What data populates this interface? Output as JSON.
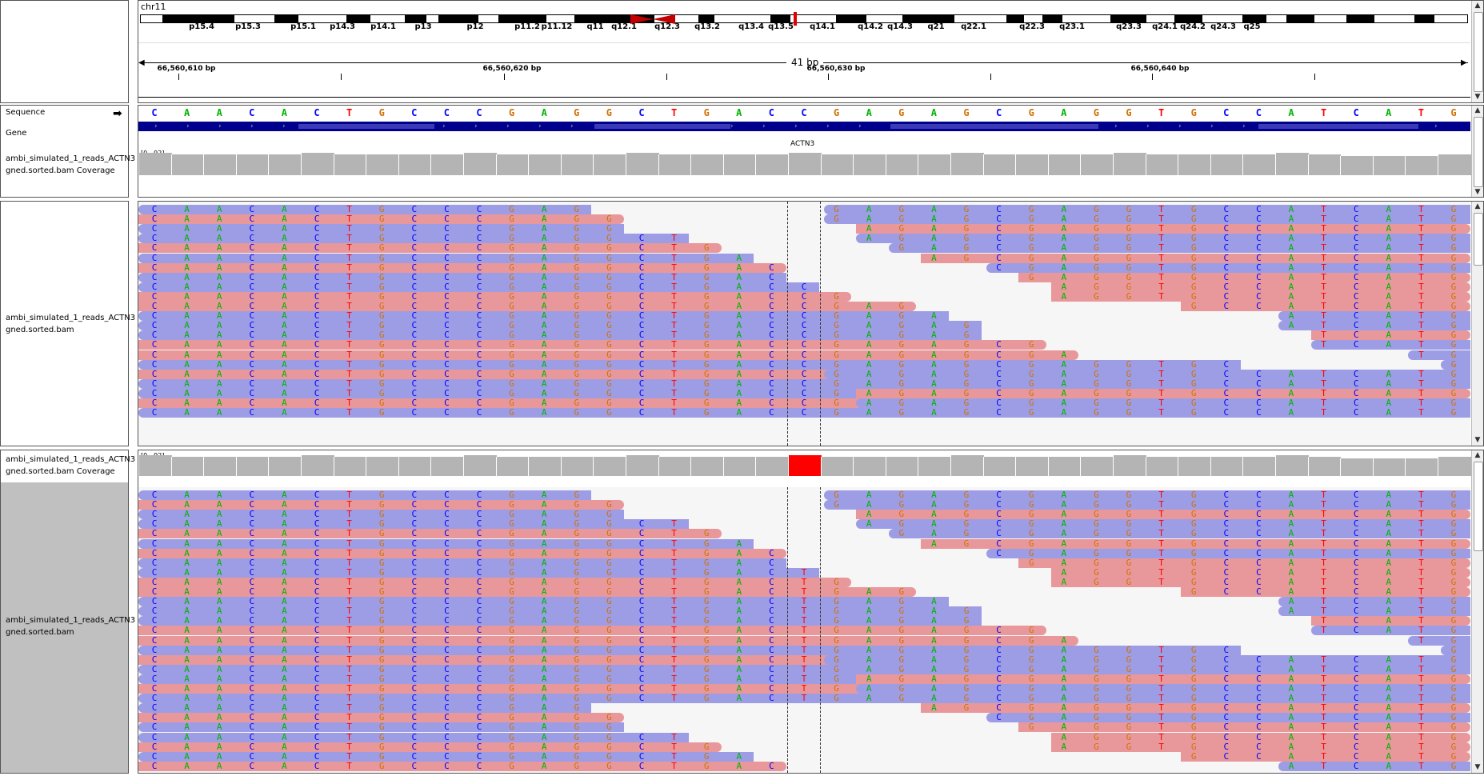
{
  "chromosome": "chr11",
  "ideogram_bands": [
    "p15.4",
    "p15.3",
    "p15.1",
    "p14.3",
    "p14.1",
    "p13",
    "p12",
    "p11.2",
    "p11.12",
    "q11",
    "q12.1",
    "q12.3",
    "q13.2",
    "q13.4",
    "q13.5",
    "q14.1",
    "q14.2",
    "q14.3",
    "q21",
    "q22.1",
    "q22.3",
    "q23.1",
    "q23.3",
    "q24.1",
    "q24.2",
    "q24.3",
    "q25"
  ],
  "ruler": {
    "span_label": "41 bp",
    "ticks": [
      "66,560,610 bp",
      "66,560,620 bp",
      "66,560,630 bp",
      "66,560,640 bp"
    ]
  },
  "tracks": {
    "sequence_label": "Sequence",
    "gene_label": "Gene",
    "coverage_label_1": "ambi_simulated_1_reads_ACTN3",
    "coverage_label_2": "gned.sorted.bam Coverage",
    "alignment_label_1": "ambi_simulated_1_reads_ACTN3",
    "alignment_label_2": "gned.sorted.bam",
    "coverage_range": "[0 - 92]",
    "gene_name": "ACTN3"
  },
  "sequence": "CAACACTGCCCGAGGCTGACCGAGAGCGAGGTGCCATCATG",
  "base_colors": {
    "A": "#00b400",
    "C": "#0000ff",
    "G": "#d17105",
    "T": "#ff0000"
  },
  "read_colors": {
    "forward": "#e8989a",
    "reverse": "#9d9de6"
  },
  "highlight_color": "#ff0000",
  "panel2_alt_base": "T"
}
